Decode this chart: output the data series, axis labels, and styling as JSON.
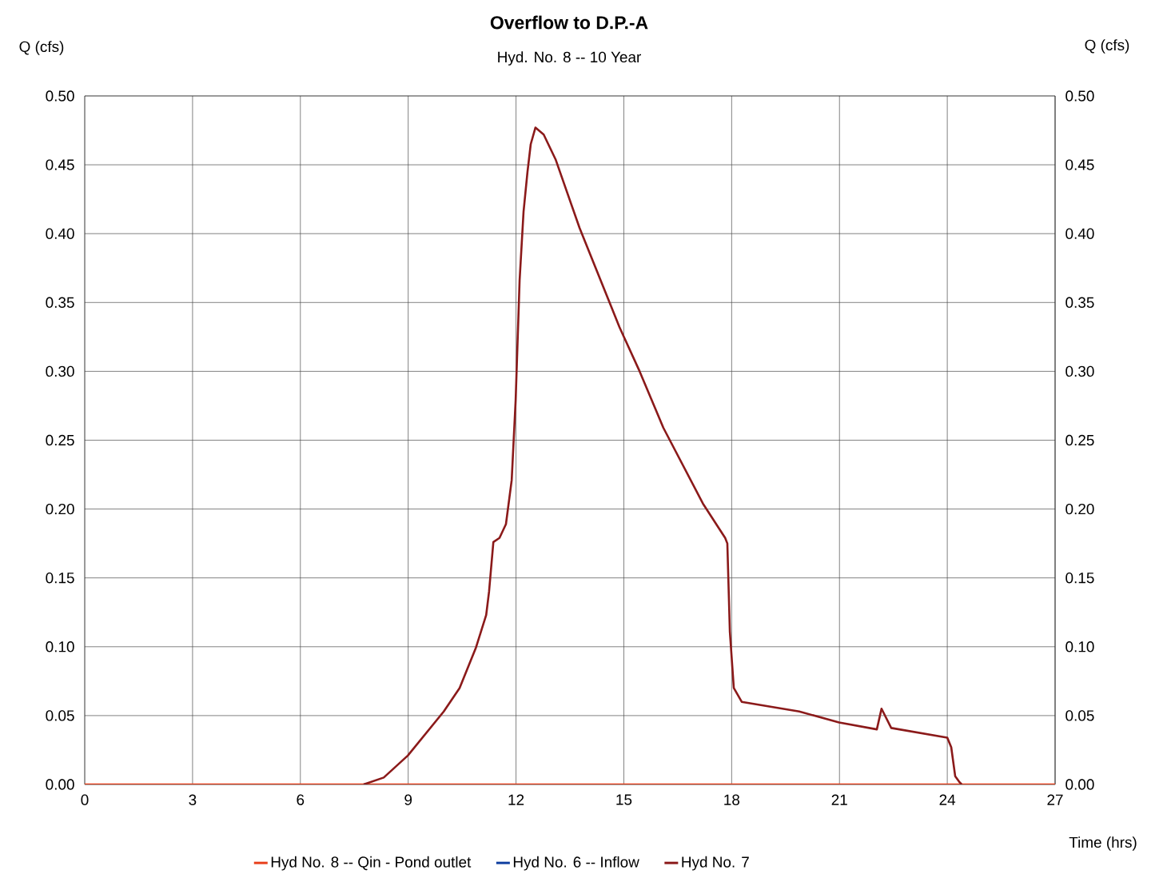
{
  "chart_data": {
    "type": "line",
    "title": "Overflow to D.P.-A",
    "subtitle": "Hyd. No. 8 -- 10 Year",
    "xlabel": "Time (hrs)",
    "ylabel": "Q (cfs)",
    "y2label": "Q (cfs)",
    "xlim": [
      0,
      27
    ],
    "xticks": [
      0,
      3,
      6,
      9,
      12,
      15,
      18,
      21,
      24,
      27
    ],
    "ylim": [
      0,
      0.5
    ],
    "yticks": [
      {
        "value": 0,
        "label": "0.00"
      },
      {
        "value": 0.05,
        "label": "0.05"
      },
      {
        "value": 0.1,
        "label": "0.10"
      },
      {
        "value": 0.15,
        "label": "0.15"
      },
      {
        "value": 0.2,
        "label": "0.20"
      },
      {
        "value": 0.25,
        "label": "0.25"
      },
      {
        "value": 0.3,
        "label": "0.30"
      },
      {
        "value": 0.35,
        "label": "0.35"
      },
      {
        "value": 0.4,
        "label": "0.40"
      },
      {
        "value": 0.45,
        "label": "0.45"
      },
      {
        "value": 0.5,
        "label": "0.50"
      }
    ],
    "y2lim": [
      0,
      0.5
    ],
    "y2ticks": [
      {
        "value": 0,
        "label": "0.00"
      },
      {
        "value": 0.05,
        "label": "0.05"
      },
      {
        "value": 0.1,
        "label": "0.10"
      },
      {
        "value": 0.15,
        "label": "0.15"
      },
      {
        "value": 0.2,
        "label": "0.20"
      },
      {
        "value": 0.25,
        "label": "0.25"
      },
      {
        "value": 0.3,
        "label": "0.30"
      },
      {
        "value": 0.35,
        "label": "0.35"
      },
      {
        "value": 0.4,
        "label": "0.40"
      },
      {
        "value": 0.45,
        "label": "0.45"
      },
      {
        "value": 0.5,
        "label": "0.50"
      }
    ],
    "grid": true,
    "legend": "bottom",
    "marker": "none",
    "line_style": "solid",
    "series": [
      {
        "name": "Hyd No. 8 -- Qin - Pond outlet",
        "color": "#e8401c",
        "x": [
          0,
          27
        ],
        "values": [
          0,
          0
        ]
      },
      {
        "name": "Hyd No. 6 -- Inflow",
        "color": "#1040a0",
        "values": [
          null
        ]
      },
      {
        "name": "Hyd No. 7",
        "color": "#8b1a1a",
        "x": [
          7.76,
          8.32,
          8.99,
          9.99,
          10.43,
          10.88,
          11.17,
          11.25,
          11.37,
          11.54,
          11.72,
          11.88,
          11.99,
          12.1,
          12.21,
          12.32,
          12.41,
          12.54,
          12.77,
          13.1,
          13.77,
          14.88,
          15.44,
          16.1,
          17.2,
          17.82,
          17.88,
          17.95,
          18.06,
          18.28,
          19.88,
          20.99,
          22.04,
          22.17,
          22.44,
          24.0,
          24.11,
          24.22,
          24.33,
          24.4
        ],
        "values": [
          0,
          0.005,
          0.021,
          0.053,
          0.07,
          0.099,
          0.123,
          0.14,
          0.176,
          0.179,
          0.189,
          0.221,
          0.279,
          0.366,
          0.416,
          0.445,
          0.465,
          0.477,
          0.472,
          0.454,
          0.404,
          0.332,
          0.3,
          0.259,
          0.204,
          0.179,
          0.175,
          0.111,
          0.07,
          0.06,
          0.053,
          0.045,
          0.04,
          0.055,
          0.041,
          0.034,
          0.027,
          0.006,
          0.002,
          0
        ]
      }
    ]
  }
}
